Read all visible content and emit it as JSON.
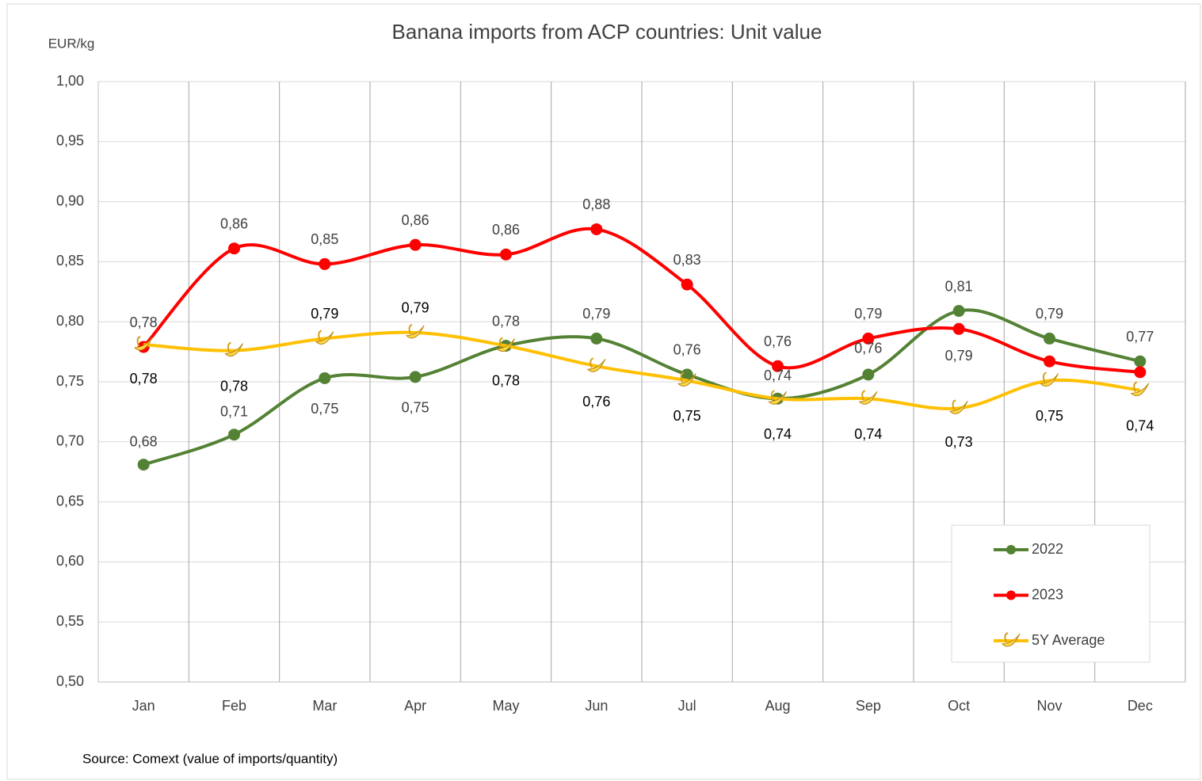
{
  "chart_data": {
    "type": "line",
    "title": "Banana imports from ACP countries: Unit value",
    "y_label": "EUR/kg",
    "source": "Source: Comext (value of imports/quantity)",
    "categories": [
      "Jan",
      "Feb",
      "Mar",
      "Apr",
      "May",
      "Jun",
      "Jul",
      "Aug",
      "Sep",
      "Oct",
      "Nov",
      "Dec"
    ],
    "ylim": [
      0.5,
      1.0
    ],
    "yticks": [
      {
        "value": 0.5,
        "label": "0,50"
      },
      {
        "value": 0.55,
        "label": "0,55"
      },
      {
        "value": 0.6,
        "label": "0,60"
      },
      {
        "value": 0.65,
        "label": "0,65"
      },
      {
        "value": 0.7,
        "label": "0,70"
      },
      {
        "value": 0.75,
        "label": "0,75"
      },
      {
        "value": 0.8,
        "label": "0,80"
      },
      {
        "value": 0.85,
        "label": "0,85"
      },
      {
        "value": 0.9,
        "label": "0,90"
      },
      {
        "value": 0.95,
        "label": "0,95"
      },
      {
        "value": 1.0,
        "label": "1,00"
      }
    ],
    "grid": true,
    "legend": "bottom-right",
    "series": [
      {
        "name": "2022",
        "color": "#548235",
        "values": [
          0.681,
          0.706,
          0.753,
          0.754,
          0.78,
          0.786,
          0.756,
          0.736,
          0.756,
          0.809,
          0.786,
          0.767
        ],
        "value_labels": [
          "0,68",
          "0,71",
          "0,75",
          "0,75",
          "0,78",
          "0,79",
          "0,76",
          "0,74",
          "0,76",
          "0,81",
          "0,79",
          "0,77"
        ]
      },
      {
        "name": "2023",
        "color": "#ff0000",
        "values": [
          0.779,
          0.861,
          0.848,
          0.864,
          0.856,
          0.877,
          0.831,
          0.763,
          0.786,
          0.794,
          0.767,
          0.758
        ],
        "value_labels": [
          "0,78",
          "0,86",
          "0,85",
          "0,86",
          "0,86",
          "0,88",
          "0,83",
          "0,76",
          "0,79",
          "0,79",
          null,
          null
        ]
      },
      {
        "name": "5Y Average",
        "color": "#ffc000",
        "values": [
          0.781,
          0.776,
          0.786,
          0.791,
          0.78,
          0.763,
          0.751,
          0.736,
          0.736,
          0.728,
          0.751,
          0.743
        ],
        "value_labels": [
          "0,78",
          "0,78",
          "0,79",
          "0,79",
          "0,78",
          "0,76",
          "0,75",
          "0,74",
          "0,74",
          "0,73",
          "0,75",
          "0,74"
        ]
      }
    ]
  }
}
